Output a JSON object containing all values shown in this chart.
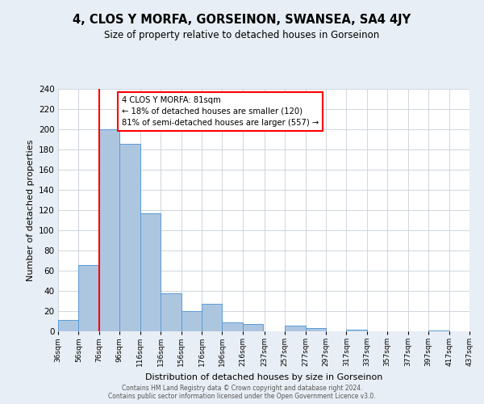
{
  "title": "4, CLOS Y MORFA, GORSEINON, SWANSEA, SA4 4JY",
  "subtitle": "Size of property relative to detached houses in Gorseinon",
  "xlabel": "Distribution of detached houses by size in Gorseinon",
  "ylabel": "Number of detached properties",
  "bin_labels": [
    "36sqm",
    "56sqm",
    "76sqm",
    "96sqm",
    "116sqm",
    "136sqm",
    "156sqm",
    "176sqm",
    "196sqm",
    "216sqm",
    "237sqm",
    "257sqm",
    "277sqm",
    "297sqm",
    "317sqm",
    "337sqm",
    "357sqm",
    "377sqm",
    "397sqm",
    "417sqm",
    "437sqm"
  ],
  "bin_positions": [
    36,
    56,
    76,
    96,
    116,
    136,
    156,
    176,
    196,
    216,
    237,
    257,
    277,
    297,
    317,
    337,
    357,
    377,
    397,
    417,
    437
  ],
  "bar_starts": [
    36,
    56,
    76,
    96,
    116,
    136,
    156,
    176,
    196,
    216,
    237,
    257,
    277,
    297,
    317,
    337,
    357,
    377,
    397,
    417
  ],
  "bar_values": [
    11,
    66,
    200,
    186,
    117,
    38,
    20,
    27,
    9,
    7,
    0,
    6,
    3,
    0,
    2,
    0,
    0,
    0,
    1,
    0
  ],
  "bar_color": "#adc6e0",
  "bar_edge_color": "#5b9bd5",
  "red_line_x": 76,
  "ylim": [
    0,
    240
  ],
  "yticks": [
    0,
    20,
    40,
    60,
    80,
    100,
    120,
    140,
    160,
    180,
    200,
    220,
    240
  ],
  "annotation_title": "4 CLOS Y MORFA: 81sqm",
  "annotation_line1": "← 18% of detached houses are smaller (120)",
  "annotation_line2": "81% of semi-detached houses are larger (557) →",
  "footnote1": "Contains HM Land Registry data © Crown copyright and database right 2024.",
  "footnote2": "Contains public sector information licensed under the Open Government Licence v3.0.",
  "background_color": "#e8eef5",
  "plot_background": "#ffffff",
  "grid_color": "#c8d0d8"
}
